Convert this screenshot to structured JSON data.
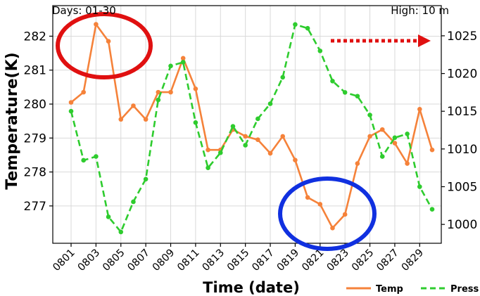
{
  "chart_data": {
    "type": "line",
    "top_left_text": "Days: 01-30",
    "top_right_text": "High: 10 m",
    "xlabel": "Time (date)",
    "ylabel": "Temperature(K)",
    "x": [
      "0801",
      "0802",
      "0803",
      "0804",
      "0805",
      "0806",
      "0807",
      "0808",
      "0809",
      "0810",
      "0811",
      "0812",
      "0813",
      "0814",
      "0815",
      "0816",
      "0817",
      "0818",
      "0819",
      "0820",
      "0821",
      "0822",
      "0823",
      "0824",
      "0825",
      "0826",
      "0827",
      "0828",
      "0829",
      "0830"
    ],
    "x_tick_labels": [
      "0801",
      "0803",
      "0805",
      "0807",
      "0809",
      "0811",
      "0813",
      "0815",
      "0817",
      "0819",
      "0821",
      "0823",
      "0825",
      "0827",
      "0829"
    ],
    "ylim": [
      275.9,
      282.9
    ],
    "y_ticks": [
      "277",
      "278",
      "279",
      "280",
      "281",
      "282"
    ],
    "y2lim": [
      997.5,
      1029
    ],
    "y2_ticks": [
      "1000",
      "1005",
      "1010",
      "1015",
      "1020",
      "1025"
    ],
    "grid": true,
    "legend_position": "bottom-right",
    "series": [
      {
        "name": "Temp",
        "axis": "left",
        "color": "#f5823a",
        "style": "solid",
        "values": [
          280.05,
          280.35,
          282.35,
          281.85,
          279.55,
          279.95,
          279.55,
          280.35,
          280.35,
          281.35,
          280.45,
          278.65,
          278.65,
          279.25,
          279.05,
          278.95,
          278.55,
          279.05,
          278.35,
          277.25,
          277.05,
          276.35,
          276.75,
          278.25,
          279.05,
          279.25,
          278.85,
          278.25,
          279.85,
          278.65
        ]
      },
      {
        "name": "Press",
        "axis": "right",
        "color": "#2ecc2e",
        "style": "dashed",
        "values": [
          1015,
          1008.5,
          1009,
          1001,
          999,
          1003,
          1006,
          1016.5,
          1021,
          1021.5,
          1013.5,
          1007.5,
          1009.5,
          1013,
          1010.5,
          1014,
          1016,
          1019.5,
          1026.5,
          1026,
          1023,
          1019,
          1017.5,
          1017,
          1014.5,
          1009,
          1011.5,
          1012,
          1005,
          1002
        ]
      }
    ]
  },
  "annotations": {
    "red_circle_color": "#e01010",
    "blue_circle_color": "#1030e0",
    "arrow_color": "#e01010"
  }
}
